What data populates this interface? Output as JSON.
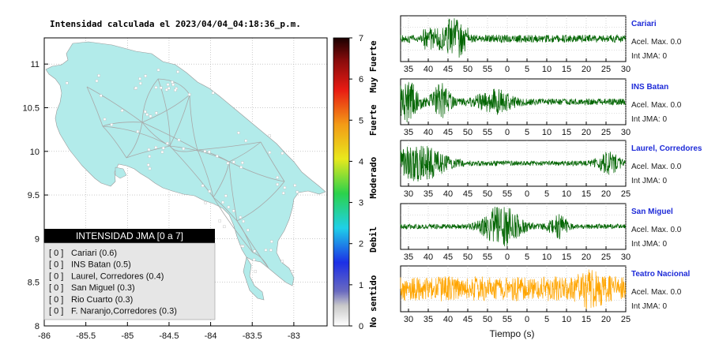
{
  "map": {
    "title": "Intensidad calculada el 2023/04/04_04:18:36_p.m.",
    "x_ticks": [
      "-86",
      "-85.5",
      "-85",
      "-84.5",
      "-84",
      "-83.5",
      "-83"
    ],
    "y_ticks": [
      "11",
      "10.5",
      "10",
      "9.5",
      "9",
      "8.5",
      "8"
    ],
    "land_color": "#b2ebea",
    "legend": {
      "header": "INTENSIDAD JMA [0 a 7]",
      "rows": [
        {
          "level": "[ 0 ]",
          "station": "Cariari (0.6)"
        },
        {
          "level": "[ 0 ]",
          "station": "INS Batan (0.5)"
        },
        {
          "level": "[ 0 ]",
          "station": "Laurel, Corredores (0.4)"
        },
        {
          "level": "[ 0 ]",
          "station": "San Miguel (0.3)"
        },
        {
          "level": "[ 0 ]",
          "station": "Rio Cuarto (0.3)"
        },
        {
          "level": "[ 0 ]",
          "station": "F. Naranjo,Corredores (0.3)"
        }
      ]
    }
  },
  "colorbar": {
    "ticks": [
      "7",
      "6",
      "5",
      "4",
      "3",
      "2",
      "1",
      "0"
    ],
    "labels": [
      "Muy Fuerte",
      "Fuerte",
      "Moderado",
      "Debil",
      "No sentido"
    ]
  },
  "waveforms": {
    "xlabel": "Tiempo (s)",
    "stations": [
      {
        "name": "Cariari",
        "acel": "Acel. Max. 0.0",
        "int": "Int JMA: 0",
        "color": "#006400",
        "ticks": [
          "35",
          "40",
          "45",
          "50",
          "55",
          "0",
          "5",
          "10",
          "15",
          "20",
          "25",
          "30"
        ]
      },
      {
        "name": "INS Batan",
        "acel": "Acel. Max. 0.0",
        "int": "Int JMA: 0",
        "color": "#006400",
        "ticks": [
          "35",
          "40",
          "45",
          "50",
          "55",
          "0",
          "5",
          "10",
          "15",
          "20",
          "25",
          "30"
        ]
      },
      {
        "name": "Laurel, Corredores",
        "acel": "Acel. Max. 0.0",
        "int": "Int JMA: 0",
        "color": "#006400",
        "ticks": [
          "30",
          "35",
          "40",
          "45",
          "50",
          "55",
          "0",
          "5",
          "10",
          "15",
          "20",
          "25"
        ]
      },
      {
        "name": "San Miguel",
        "acel": "Acel. Max. 0.0",
        "int": "Int JMA: 0",
        "color": "#006400",
        "ticks": [
          "35",
          "40",
          "45",
          "50",
          "55",
          "0",
          "5",
          "10",
          "15",
          "20",
          "25",
          "30"
        ]
      },
      {
        "name": "Teatro Nacional",
        "acel": "Acel. Max. 0.0",
        "int": "Int JMA: 0",
        "color": "#ffa500",
        "ticks": [
          "30",
          "35",
          "40",
          "45",
          "50",
          "55",
          "0",
          "5",
          "10",
          "15",
          "20",
          "25"
        ]
      }
    ]
  },
  "chart_data": [
    {
      "type": "scatter",
      "title": "Intensidad calculada el 2023/04/04_04:18:36_p.m.",
      "xlim": [
        -86,
        -82.6
      ],
      "ylim": [
        8,
        11.3
      ],
      "x_ticks": [
        -86,
        -85.5,
        -85,
        -84.5,
        -84,
        -83.5,
        -83
      ],
      "y_ticks": [
        8,
        8.5,
        9,
        9.5,
        10,
        10.5,
        11
      ],
      "legend": "bottom-left"
    },
    {
      "type": "line",
      "xlabel": "Tiempo (s)",
      "series": [
        {
          "name": "Cariari"
        },
        {
          "name": "INS Batan"
        },
        {
          "name": "Laurel, Corredores"
        },
        {
          "name": "San Miguel"
        },
        {
          "name": "Teatro Nacional"
        }
      ]
    }
  ]
}
